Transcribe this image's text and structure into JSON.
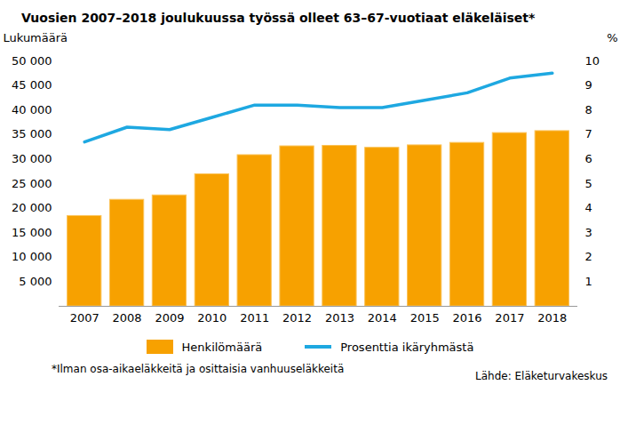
{
  "chart_data": {
    "type": "bar",
    "title": "Vuosien 2007–2018 joulukuussa työssä olleet 63–67-vuotiaat eläkeläiset*",
    "categories": [
      "2007",
      "2008",
      "2009",
      "2010",
      "2011",
      "2012",
      "2013",
      "2014",
      "2015",
      "2016",
      "2017",
      "2018"
    ],
    "series": [
      {
        "name": "Henkilömäärä",
        "type": "bar",
        "color": "#f7a100",
        "values": [
          18400,
          21700,
          22600,
          26900,
          30800,
          32600,
          32700,
          32300,
          32800,
          33300,
          35300,
          35700
        ]
      },
      {
        "name": "Prosenttia ikäryhmästä",
        "type": "line",
        "axis": "y2",
        "color": "#1ea8e1",
        "values": [
          6.7,
          7.3,
          7.2,
          7.7,
          8.2,
          8.2,
          8.1,
          8.1,
          8.4,
          8.7,
          9.3,
          9.5
        ]
      }
    ],
    "ylabel": "Lukumäärä",
    "y2label": "%",
    "ylim": [
      0,
      50000
    ],
    "yticks": [
      {
        "value": 5000,
        "label": "5 000"
      },
      {
        "value": 10000,
        "label": "10 000"
      },
      {
        "value": 15000,
        "label": "15 000"
      },
      {
        "value": 20000,
        "label": "20 000"
      },
      {
        "value": 25000,
        "label": "25 000"
      },
      {
        "value": 30000,
        "label": "30 000"
      },
      {
        "value": 35000,
        "label": "35 000"
      },
      {
        "value": 40000,
        "label": "40 000"
      },
      {
        "value": 45000,
        "label": "45 000"
      },
      {
        "value": 50000,
        "label": "50 000"
      }
    ],
    "y2lim": [
      0,
      10
    ],
    "y2ticks": [
      1,
      2,
      3,
      4,
      5,
      6,
      7,
      8,
      9,
      10
    ],
    "grid": false,
    "legend": "bottom",
    "footnote": "*Ilman osa-aikaeläkkeitä ja osittaisia vanhuuseläkkeitä",
    "source": "Lähde: Eläketurvakeskus"
  }
}
